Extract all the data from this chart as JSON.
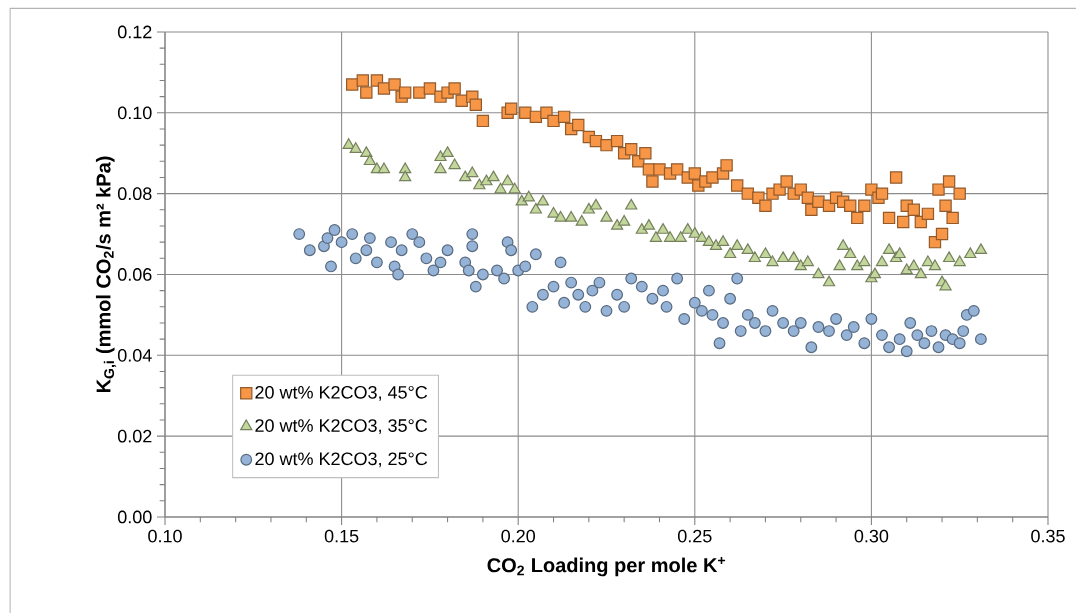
{
  "chart_data": {
    "type": "scatter",
    "xlabel": "CO$_{2}$ Loading per mole K$^{+}$",
    "ylabel": "K$_{G,i}$  (mmol CO$_{2}$/s m² kPa)",
    "xlim": [
      0.1,
      0.35
    ],
    "ylim": [
      0,
      0.12
    ],
    "xticks": [
      {
        "value": 0.1,
        "label": "0.10"
      },
      {
        "value": 0.15,
        "label": "0.15"
      },
      {
        "value": 0.2,
        "label": "0.20"
      },
      {
        "value": 0.25,
        "label": "0.25"
      },
      {
        "value": 0.3,
        "label": "0.30"
      },
      {
        "value": 0.35,
        "label": "0.35"
      }
    ],
    "yticks": [
      {
        "value": 0,
        "label": "0.00"
      },
      {
        "value": 0.02,
        "label": "0.02"
      },
      {
        "value": 0.04,
        "label": "0.04"
      },
      {
        "value": 0.06,
        "label": "0.06"
      },
      {
        "value": 0.08,
        "label": "0.08"
      },
      {
        "value": 0.1,
        "label": "0.10"
      },
      {
        "value": 0.12,
        "label": "0.12"
      }
    ],
    "grid": true,
    "legend": "bottom left",
    "series": [
      {
        "name": "20 wt% K2CO3, 45°C",
        "color": "#f79646",
        "marker": "square",
        "x": [
          0.153,
          0.156,
          0.157,
          0.16,
          0.162,
          0.165,
          0.167,
          0.168,
          0.172,
          0.175,
          0.178,
          0.18,
          0.182,
          0.184,
          0.187,
          0.188,
          0.19,
          0.197,
          0.198,
          0.202,
          0.205,
          0.208,
          0.21,
          0.213,
          0.215,
          0.217,
          0.22,
          0.222,
          0.225,
          0.228,
          0.23,
          0.232,
          0.234,
          0.236,
          0.237,
          0.238,
          0.24,
          0.243,
          0.245,
          0.248,
          0.25,
          0.251,
          0.253,
          0.255,
          0.258,
          0.259,
          0.262,
          0.265,
          0.268,
          0.27,
          0.272,
          0.274,
          0.276,
          0.278,
          0.28,
          0.282,
          0.283,
          0.285,
          0.288,
          0.29,
          0.292,
          0.294,
          0.296,
          0.298,
          0.3,
          0.302,
          0.303,
          0.305,
          0.307,
          0.309,
          0.31,
          0.312,
          0.314,
          0.316,
          0.318,
          0.319,
          0.32,
          0.321,
          0.322,
          0.323,
          0.325
        ],
        "values": [
          0.107,
          0.108,
          0.105,
          0.108,
          0.106,
          0.107,
          0.104,
          0.105,
          0.105,
          0.106,
          0.104,
          0.105,
          0.106,
          0.103,
          0.104,
          0.102,
          0.098,
          0.1,
          0.101,
          0.1,
          0.099,
          0.1,
          0.098,
          0.099,
          0.096,
          0.097,
          0.094,
          0.093,
          0.092,
          0.093,
          0.09,
          0.091,
          0.088,
          0.09,
          0.086,
          0.083,
          0.086,
          0.085,
          0.086,
          0.084,
          0.085,
          0.082,
          0.083,
          0.084,
          0.085,
          0.087,
          0.082,
          0.08,
          0.079,
          0.077,
          0.08,
          0.081,
          0.083,
          0.08,
          0.081,
          0.079,
          0.076,
          0.078,
          0.077,
          0.079,
          0.078,
          0.077,
          0.074,
          0.077,
          0.081,
          0.079,
          0.08,
          0.074,
          0.084,
          0.073,
          0.077,
          0.076,
          0.073,
          0.075,
          0.068,
          0.081,
          0.07,
          0.077,
          0.083,
          0.074,
          0.08
        ]
      },
      {
        "name": "20 wt% K2CO3, 35°C",
        "color": "#c3d69b",
        "marker": "triangle",
        "x": [
          0.152,
          0.154,
          0.157,
          0.158,
          0.16,
          0.162,
          0.168,
          0.168,
          0.178,
          0.18,
          0.178,
          0.182,
          0.185,
          0.187,
          0.189,
          0.191,
          0.193,
          0.195,
          0.197,
          0.199,
          0.201,
          0.203,
          0.205,
          0.207,
          0.21,
          0.212,
          0.215,
          0.218,
          0.22,
          0.222,
          0.225,
          0.228,
          0.23,
          0.232,
          0.235,
          0.237,
          0.239,
          0.241,
          0.243,
          0.246,
          0.248,
          0.25,
          0.252,
          0.254,
          0.256,
          0.258,
          0.26,
          0.262,
          0.265,
          0.267,
          0.27,
          0.272,
          0.275,
          0.278,
          0.28,
          0.282,
          0.285,
          0.288,
          0.291,
          0.292,
          0.294,
          0.296,
          0.298,
          0.3,
          0.301,
          0.303,
          0.305,
          0.307,
          0.308,
          0.31,
          0.312,
          0.314,
          0.316,
          0.318,
          0.32,
          0.321,
          0.322,
          0.325,
          0.328,
          0.331
        ],
        "values": [
          0.092,
          0.091,
          0.09,
          0.088,
          0.086,
          0.086,
          0.086,
          0.084,
          0.089,
          0.09,
          0.086,
          0.087,
          0.084,
          0.085,
          0.082,
          0.083,
          0.084,
          0.081,
          0.083,
          0.081,
          0.078,
          0.079,
          0.076,
          0.078,
          0.075,
          0.074,
          0.074,
          0.073,
          0.076,
          0.077,
          0.074,
          0.072,
          0.073,
          0.077,
          0.071,
          0.072,
          0.069,
          0.071,
          0.069,
          0.069,
          0.071,
          0.07,
          0.069,
          0.068,
          0.067,
          0.068,
          0.065,
          0.067,
          0.066,
          0.064,
          0.065,
          0.063,
          0.064,
          0.064,
          0.062,
          0.063,
          0.06,
          0.058,
          0.062,
          0.067,
          0.065,
          0.062,
          0.063,
          0.059,
          0.06,
          0.063,
          0.066,
          0.064,
          0.065,
          0.061,
          0.062,
          0.06,
          0.063,
          0.062,
          0.058,
          0.057,
          0.064,
          0.063,
          0.065,
          0.066
        ]
      },
      {
        "name": "20 wt% K2CO3, 25°C",
        "color": "#95b3d7",
        "marker": "circle",
        "x": [
          0.138,
          0.141,
          0.145,
          0.146,
          0.147,
          0.148,
          0.15,
          0.153,
          0.154,
          0.157,
          0.158,
          0.16,
          0.164,
          0.165,
          0.166,
          0.167,
          0.17,
          0.172,
          0.174,
          0.176,
          0.178,
          0.18,
          0.185,
          0.186,
          0.187,
          0.187,
          0.188,
          0.19,
          0.194,
          0.196,
          0.197,
          0.198,
          0.2,
          0.202,
          0.204,
          0.205,
          0.207,
          0.21,
          0.212,
          0.213,
          0.215,
          0.217,
          0.219,
          0.221,
          0.223,
          0.225,
          0.228,
          0.23,
          0.232,
          0.235,
          0.238,
          0.241,
          0.242,
          0.245,
          0.247,
          0.25,
          0.252,
          0.254,
          0.255,
          0.257,
          0.258,
          0.26,
          0.262,
          0.263,
          0.265,
          0.267,
          0.27,
          0.272,
          0.275,
          0.278,
          0.28,
          0.283,
          0.285,
          0.288,
          0.29,
          0.293,
          0.295,
          0.298,
          0.3,
          0.303,
          0.305,
          0.308,
          0.31,
          0.311,
          0.313,
          0.315,
          0.317,
          0.319,
          0.321,
          0.323,
          0.325,
          0.326,
          0.327,
          0.329,
          0.331
        ],
        "values": [
          0.07,
          0.066,
          0.067,
          0.069,
          0.062,
          0.071,
          0.068,
          0.07,
          0.064,
          0.066,
          0.069,
          0.063,
          0.068,
          0.062,
          0.06,
          0.066,
          0.07,
          0.068,
          0.064,
          0.061,
          0.063,
          0.066,
          0.063,
          0.061,
          0.067,
          0.07,
          0.057,
          0.06,
          0.061,
          0.059,
          0.068,
          0.066,
          0.061,
          0.062,
          0.052,
          0.065,
          0.055,
          0.057,
          0.063,
          0.053,
          0.058,
          0.055,
          0.052,
          0.056,
          0.058,
          0.051,
          0.055,
          0.052,
          0.059,
          0.057,
          0.054,
          0.056,
          0.052,
          0.059,
          0.049,
          0.053,
          0.051,
          0.056,
          0.05,
          0.043,
          0.048,
          0.054,
          0.059,
          0.046,
          0.05,
          0.048,
          0.046,
          0.051,
          0.048,
          0.046,
          0.048,
          0.042,
          0.047,
          0.046,
          0.049,
          0.045,
          0.047,
          0.043,
          0.049,
          0.045,
          0.042,
          0.044,
          0.041,
          0.048,
          0.045,
          0.043,
          0.046,
          0.042,
          0.045,
          0.044,
          0.043,
          0.046,
          0.05,
          0.051,
          0.044
        ]
      }
    ]
  }
}
